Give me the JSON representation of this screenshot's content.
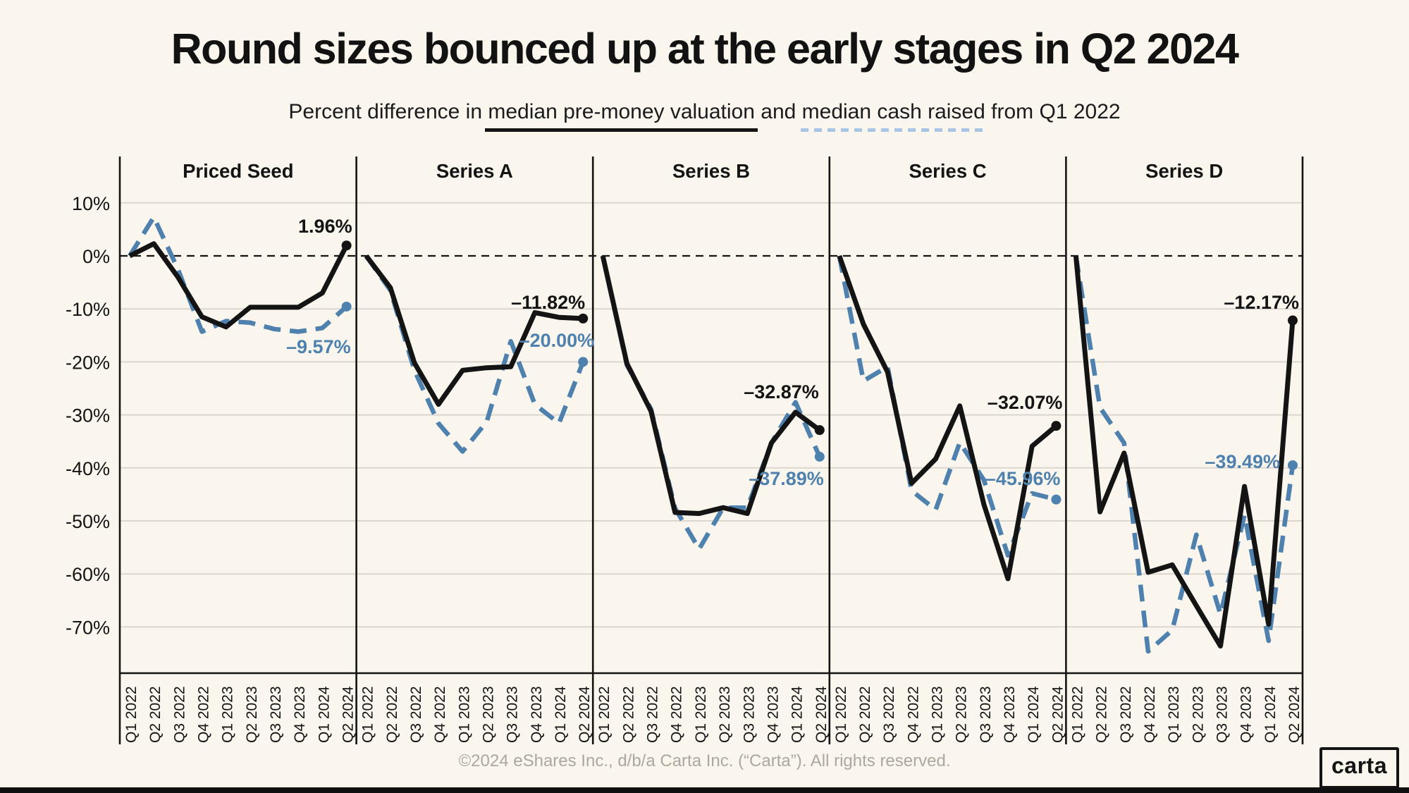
{
  "title": "Round sizes bounced up at the early stages in Q2 2024",
  "subtitle": {
    "prefix": "Percent difference in ",
    "valuation_label": "median pre-money valuation",
    "middle": " and ",
    "cash_label": "median cash raised",
    "suffix": " from Q1 2022"
  },
  "footer": "©2024 eShares Inc., d/b/a Carta Inc. (“Carta”). All rights reserved.",
  "logo_text": "carta",
  "colors": {
    "background": "#FAF5ED",
    "ink": "#141414",
    "blue": "#4E81AD",
    "grid": "#DBD7CF",
    "footer_text": "#ACA89F",
    "subtitle_dash": "#A8C5E5"
  },
  "chart_data": {
    "type": "line",
    "title": "Round sizes bounced up at the early stages in Q2 2024",
    "subtitle": "Percent difference in median pre-money valuation and median cash raised from Q1 2022",
    "legend": [
      {
        "name": "median pre-money valuation",
        "style": "solid",
        "color": "#141414"
      },
      {
        "name": "median cash raised",
        "style": "dashed",
        "color": "#4E81AD"
      }
    ],
    "ylim": [
      -78.7,
      18.8
    ],
    "grid": true,
    "baseline_value": 0,
    "x_labels": [
      "Q1 2022",
      "Q2 2022",
      "Q3 2022",
      "Q4 2022",
      "Q1 2023",
      "Q2 2023",
      "Q3 2023",
      "Q4 2023",
      "Q1 2024",
      "Q2 2024"
    ],
    "y_ticks": [
      {
        "value": 10,
        "label": "10%"
      },
      {
        "value": 0,
        "label": "0%"
      },
      {
        "value": -10,
        "label": "-10%"
      },
      {
        "value": -20,
        "label": "-20%"
      },
      {
        "value": -30,
        "label": "-30%"
      },
      {
        "value": -40,
        "label": "-40%"
      },
      {
        "value": -50,
        "label": "-50%"
      },
      {
        "value": -60,
        "label": "-60%"
      },
      {
        "value": -70,
        "label": "-70%"
      }
    ],
    "panels": [
      {
        "label": "Priced Seed",
        "series": [
          {
            "name": "median pre-money valuation",
            "values": [
              0,
              2.3,
              -4.0,
              -11.5,
              -13.4,
              -9.7,
              -9.7,
              -9.7,
              -7.0,
              1.96
            ],
            "end_label": "1.96%"
          },
          {
            "name": "median cash raised",
            "values": [
              0,
              7.3,
              -2.5,
              -14.3,
              -12.3,
              -12.6,
              -13.8,
              -14.3,
              -13.6,
              -9.57
            ],
            "end_label": "–9.57%"
          }
        ]
      },
      {
        "label": "Series A",
        "series": [
          {
            "name": "median pre-money valuation",
            "values": [
              0,
              -6.0,
              -20.2,
              -28.0,
              -21.6,
              -21.1,
              -20.9,
              -10.7,
              -11.6,
              -11.82
            ],
            "end_label": "–11.82%"
          },
          {
            "name": "median cash raised",
            "values": [
              0,
              -6.5,
              -21.6,
              -31.6,
              -36.9,
              -31.3,
              -16.1,
              -28.0,
              -31.6,
              -20.0
            ],
            "end_label": "–20.00%"
          }
        ]
      },
      {
        "label": "Series B",
        "series": [
          {
            "name": "median pre-money valuation",
            "values": [
              0,
              -20.3,
              -29.3,
              -48.4,
              -48.6,
              -47.5,
              -48.6,
              -35.3,
              -29.5,
              -32.87
            ],
            "end_label": "–32.87%"
          },
          {
            "name": "median cash raised",
            "values": [
              0,
              -20.6,
              -28.9,
              -47.6,
              -55.3,
              -47.5,
              -47.5,
              -35.3,
              -27.6,
              -37.89
            ],
            "end_label": "–37.89%"
          }
        ]
      },
      {
        "label": "Series C",
        "series": [
          {
            "name": "median pre-money valuation",
            "values": [
              0,
              -12.9,
              -21.9,
              -42.9,
              -38.3,
              -28.3,
              -46.9,
              -60.9,
              -35.9,
              -32.07
            ],
            "end_label": "–32.07%"
          },
          {
            "name": "median cash raised",
            "values": [
              0,
              -23.6,
              -20.9,
              -44.3,
              -47.9,
              -35.2,
              -42.3,
              -56.5,
              -44.8,
              -45.96
            ],
            "end_label": "–45.96%"
          }
        ]
      },
      {
        "label": "Series D",
        "series": [
          {
            "name": "median pre-money valuation",
            "values": [
              0,
              -48.3,
              -37.2,
              -59.7,
              -58.3,
              -66.0,
              -73.6,
              -43.5,
              -69.5,
              -12.17
            ],
            "end_label": "–12.17%"
          },
          {
            "name": "median cash raised",
            "values": [
              0,
              -28.6,
              -35.3,
              -74.6,
              -70.6,
              -52.6,
              -67.6,
              -48.9,
              -72.6,
              -39.49
            ],
            "end_label": "–39.49%"
          }
        ]
      }
    ]
  }
}
